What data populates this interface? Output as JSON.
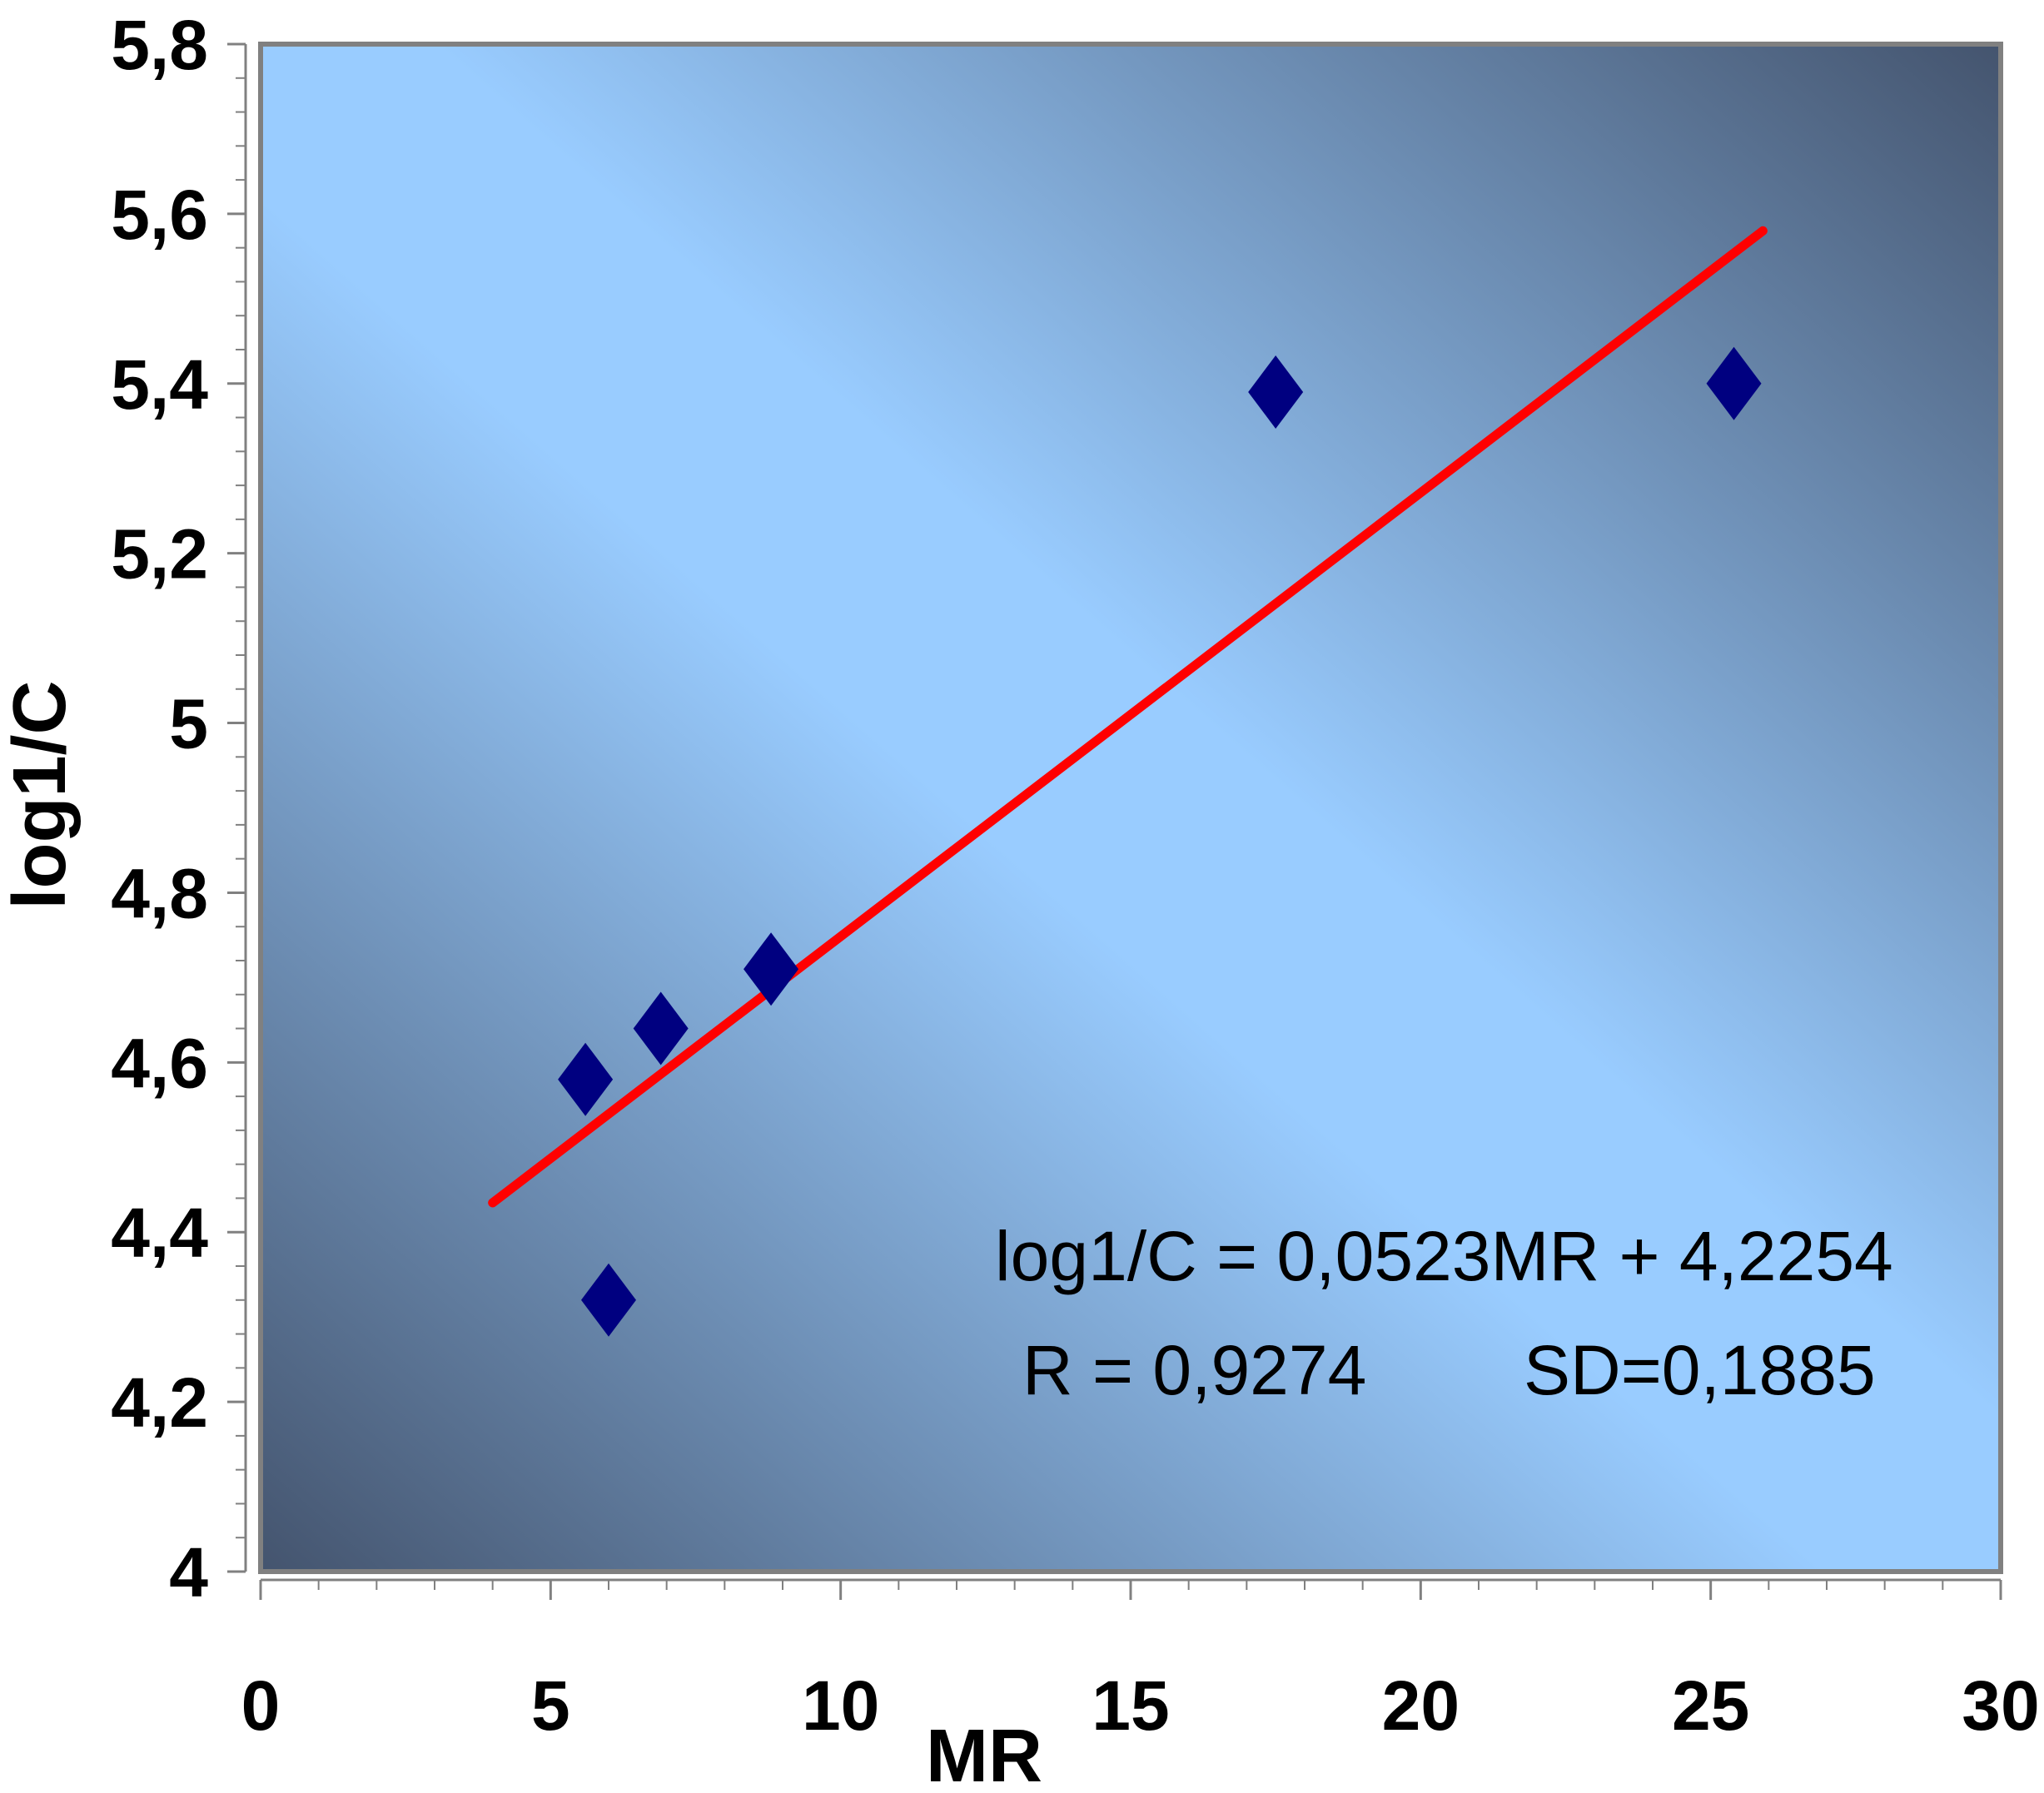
{
  "chart_data": {
    "type": "scatter",
    "xlabel": "MR",
    "ylabel": "log1/C",
    "xlim": [
      0,
      30
    ],
    "ylim": [
      4,
      5.8
    ],
    "x_ticks": [
      0,
      5,
      10,
      15,
      20,
      25,
      30
    ],
    "x_tick_labels": [
      "0",
      "5",
      "10",
      "15",
      "20",
      "25",
      "30"
    ],
    "y_ticks": [
      4,
      4.2,
      4.4,
      4.6,
      4.8,
      5,
      5.2,
      5.4,
      5.6,
      5.8
    ],
    "y_tick_labels": [
      "4",
      "4,2",
      "4,4",
      "4,6",
      "4,8",
      "5",
      "5,2",
      "5,4",
      "5,6",
      "5,8"
    ],
    "points": [
      {
        "x": 5.6,
        "y": 4.58
      },
      {
        "x": 6.0,
        "y": 4.32
      },
      {
        "x": 6.9,
        "y": 4.64
      },
      {
        "x": 8.8,
        "y": 4.71
      },
      {
        "x": 17.5,
        "y": 5.39
      },
      {
        "x": 25.4,
        "y": 5.4
      }
    ],
    "fit_line": {
      "x": [
        4.0,
        25.9
      ],
      "slope": 0.0523,
      "intercept": 4.2254
    },
    "annotations": {
      "equation": "log1/C = 0,0523MR + 4,2254",
      "r_value": "R = 0,9274",
      "sd_value": "SD=0,1885"
    },
    "colors": {
      "marker": "#000080",
      "fit_line": "#ff0000",
      "plot_bg_light": "#99ccff",
      "plot_bg_dark": "#44546e"
    },
    "grid": false,
    "legend": "none"
  }
}
